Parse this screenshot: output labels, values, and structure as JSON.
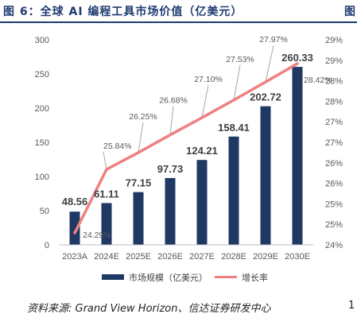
{
  "figure": {
    "title": "图 6：全球 AI 编程工具市场价值（亿美元）",
    "title_cut": "图",
    "source": "资料来源: Grand View Horizon、信达证券研发中心",
    "source_cut": "1"
  },
  "chart_data": {
    "type": "bar",
    "categories": [
      "2023A",
      "2024E",
      "2025E",
      "2026E",
      "2027E",
      "2028E",
      "2029E",
      "2030E"
    ],
    "series": [
      {
        "name": "市场规模（亿美元）",
        "type": "bar",
        "axis": "left",
        "color": "#1f3864",
        "values": [
          48.56,
          61.11,
          77.15,
          97.73,
          124.21,
          158.41,
          202.72,
          260.33
        ],
        "labels": [
          "48.56",
          "61.11",
          "77.15",
          "97.73",
          "124.21",
          "158.41",
          "202.72",
          "260.33"
        ]
      },
      {
        "name": "增长率",
        "type": "line",
        "axis": "right",
        "color": "#f08080",
        "values": [
          24.29,
          25.84,
          26.25,
          26.68,
          27.1,
          27.53,
          27.97,
          28.42
        ],
        "labels": [
          "24.29%",
          "25.84%",
          "26.25%",
          "26.68%",
          "27.10%",
          "27.53%",
          "27.97%",
          "28.42%"
        ]
      }
    ],
    "y_left": {
      "min": 0,
      "max": 300,
      "ticks": [
        0,
        50,
        100,
        150,
        200,
        250,
        300
      ]
    },
    "y_right": {
      "min": 24,
      "max": 29,
      "ticks": [
        24,
        24.5,
        25,
        25.5,
        26,
        26.5,
        27,
        27.5,
        28,
        28.5,
        29
      ],
      "tick_labels": [
        "24%",
        "25%",
        "25%",
        "26%",
        "26%",
        "27%",
        "27%",
        "28%",
        "28%",
        "29%",
        "29%"
      ]
    },
    "grid": false,
    "legend_position": "bottom"
  }
}
